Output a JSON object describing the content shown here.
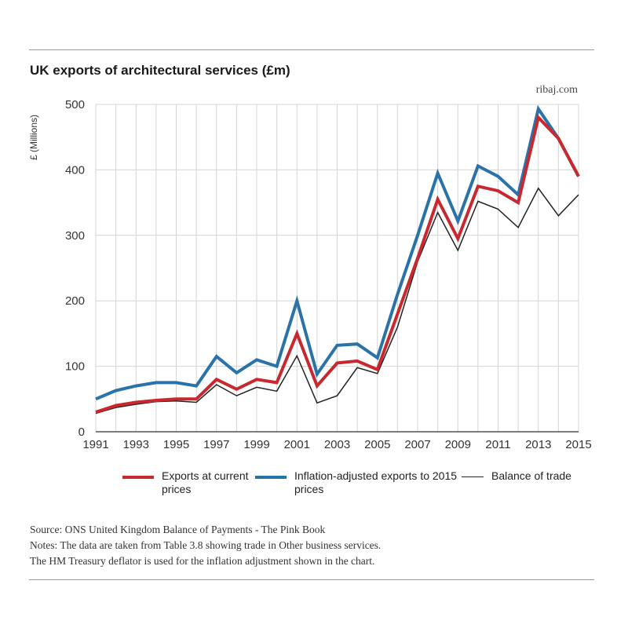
{
  "header": {
    "title": "UK exports of architectural services (£m)",
    "credit": "ribaj.com"
  },
  "footer": {
    "source": "Source: ONS United Kingdom Balance of Payments - The Pink Book",
    "note_1": "Notes: The data are taken from Table 3.8 showing trade in Other business services.",
    "note_2": "The HM Treasury deflator is used for the inflation adjustment shown in the chart."
  },
  "legend": {
    "exports": "Exports at current prices",
    "inflation": "Inflation-adjusted exports to 2015 prices",
    "balance": "Balance of trade"
  },
  "chart_data": {
    "type": "line",
    "title": "UK exports of architectural services (£m)",
    "xlabel": "",
    "ylabel": "£ (Millions)",
    "ylim": [
      0,
      500
    ],
    "yticks": [
      0,
      100,
      200,
      300,
      400,
      500
    ],
    "xlim": [
      1991,
      2015
    ],
    "xticks": [
      1991,
      1993,
      1995,
      1997,
      1999,
      2001,
      2003,
      2005,
      2007,
      2009,
      2011,
      2013,
      2015
    ],
    "grid": true,
    "legend_position": "bottom",
    "x": [
      1991,
      1992,
      1993,
      1994,
      1995,
      1996,
      1997,
      1998,
      1999,
      2000,
      2001,
      2002,
      2003,
      2004,
      2005,
      2006,
      2007,
      2008,
      2009,
      2010,
      2011,
      2012,
      2013,
      2014,
      2015
    ],
    "series": [
      {
        "name": "Exports at current prices",
        "color": "#c8282e",
        "values": [
          30,
          40,
          45,
          48,
          50,
          50,
          80,
          65,
          80,
          75,
          150,
          70,
          105,
          108,
          95,
          180,
          265,
          355,
          295,
          375,
          368,
          350,
          480,
          448,
          390
        ]
      },
      {
        "name": "Inflation-adjusted exports to 2015 prices",
        "color": "#2a73a8",
        "values": [
          50,
          63,
          70,
          75,
          75,
          70,
          115,
          90,
          110,
          100,
          200,
          88,
          132,
          134,
          113,
          210,
          300,
          395,
          322,
          406,
          390,
          362,
          493,
          448,
          390
        ]
      },
      {
        "name": "Balance of trade",
        "color": "#222222",
        "values": [
          28,
          37,
          42,
          46,
          47,
          45,
          72,
          55,
          68,
          62,
          116,
          44,
          55,
          98,
          89,
          160,
          260,
          335,
          277,
          352,
          340,
          312,
          372,
          330,
          362
        ]
      }
    ]
  }
}
